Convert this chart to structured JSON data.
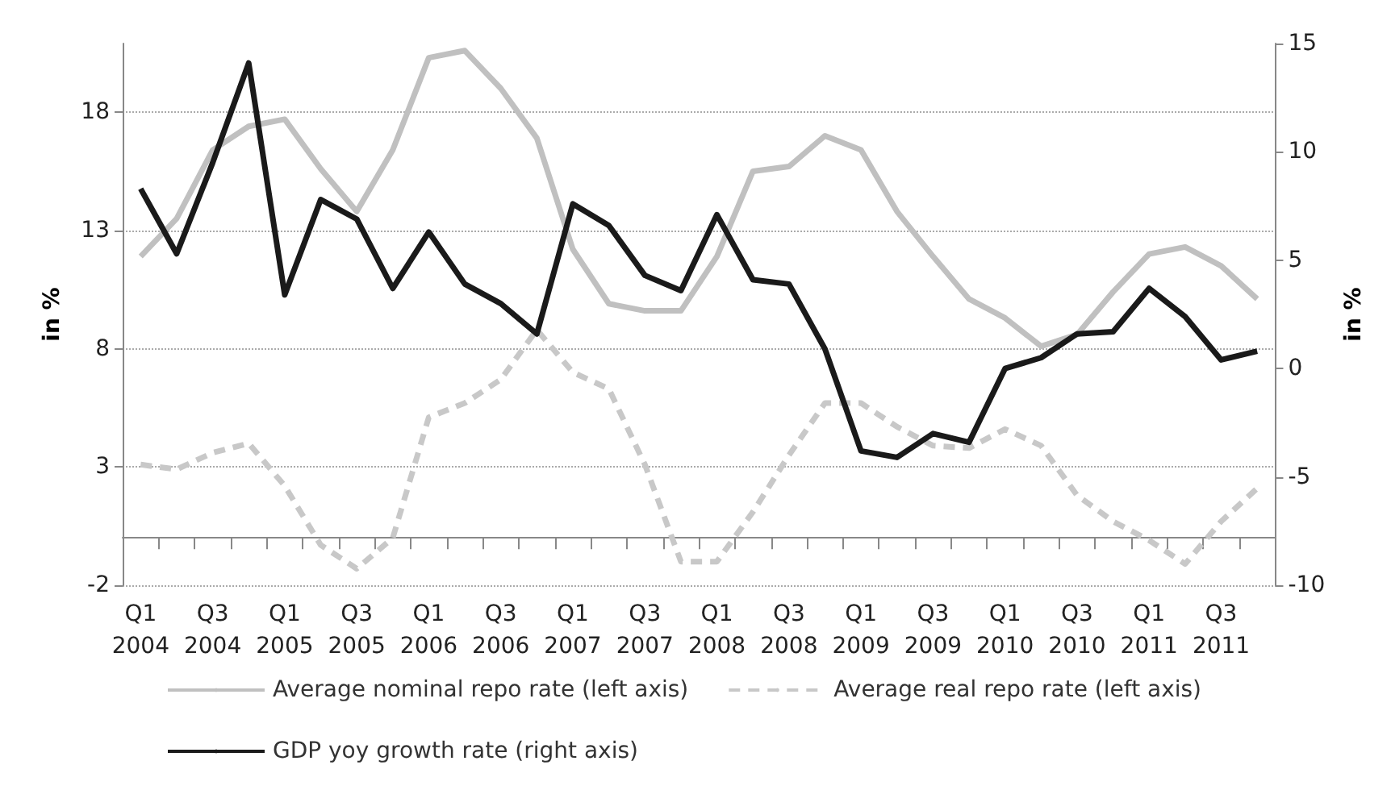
{
  "chart_data": {
    "type": "line",
    "ylabel": "in %",
    "y2label": "in %",
    "categories": [
      "Q1 2004",
      null,
      "Q3 2004",
      null,
      "Q1 2005",
      null,
      "Q3 2005",
      null,
      "Q1 2006",
      null,
      "Q3 2006",
      null,
      "Q1 2007",
      null,
      "Q3 2007",
      null,
      "Q1 2008",
      null,
      "Q3 2008",
      null,
      "Q1 2009",
      null,
      "Q3 2009",
      null,
      "Q1 2010",
      null,
      "Q3 2010",
      null,
      "Q1 2011",
      null,
      "Q3 2011",
      null
    ],
    "series": [
      {
        "name": "Average nominal repo rate (left axis)",
        "color": "#c0c0c0",
        "line_style": "solid",
        "values": [
          11.9,
          13.5,
          16.4,
          17.4,
          17.7,
          15.6,
          13.8,
          16.4,
          20.3,
          20.6,
          19.0,
          16.9,
          12.2,
          9.9,
          9.6,
          9.6,
          11.9,
          15.5,
          15.7,
          17.0,
          16.4,
          13.8,
          11.9,
          10.1,
          9.3,
          8.1,
          8.6,
          10.4,
          12.0,
          12.3,
          11.5,
          10.1
        ]
      },
      {
        "name": "Average real repo rate (left axis)",
        "color": "#c8c8c8",
        "line_style": "dashed",
        "values": [
          3.1,
          2.9,
          3.6,
          4.0,
          2.2,
          -0.3,
          -1.3,
          0.0,
          5.1,
          5.7,
          6.7,
          8.8,
          7.0,
          6.3,
          3.1,
          -1.0,
          -1.0,
          1.1,
          3.5,
          5.7,
          5.7,
          4.7,
          3.9,
          3.8,
          4.6,
          3.9,
          1.8,
          0.7,
          -0.1,
          -1.1,
          0.7,
          2.1
        ]
      },
      {
        "name": "GDP yoy growth rate (right axis)",
        "color": "#1a1a1a",
        "line_style": "solid",
        "axis": "y2",
        "values": [
          8.3,
          5.3,
          9.5,
          14.1,
          3.4,
          7.8,
          6.9,
          3.7,
          6.3,
          3.9,
          3.0,
          1.6,
          7.6,
          6.6,
          4.3,
          3.6,
          7.1,
          4.1,
          3.9,
          0.9,
          -3.8,
          -4.1,
          -3.0,
          -3.4,
          0.0,
          0.5,
          1.6,
          1.7,
          3.7,
          2.4,
          0.4,
          0.8
        ]
      }
    ],
    "ylim": [
      -2,
      20.9
    ],
    "yticks": [
      -2,
      3,
      8,
      13,
      18
    ],
    "y2lim": [
      -10,
      15
    ],
    "y2ticks": [
      -10,
      -5,
      0,
      5,
      10,
      15
    ],
    "grid": "y",
    "legend": "bottom",
    "marker": "none"
  }
}
